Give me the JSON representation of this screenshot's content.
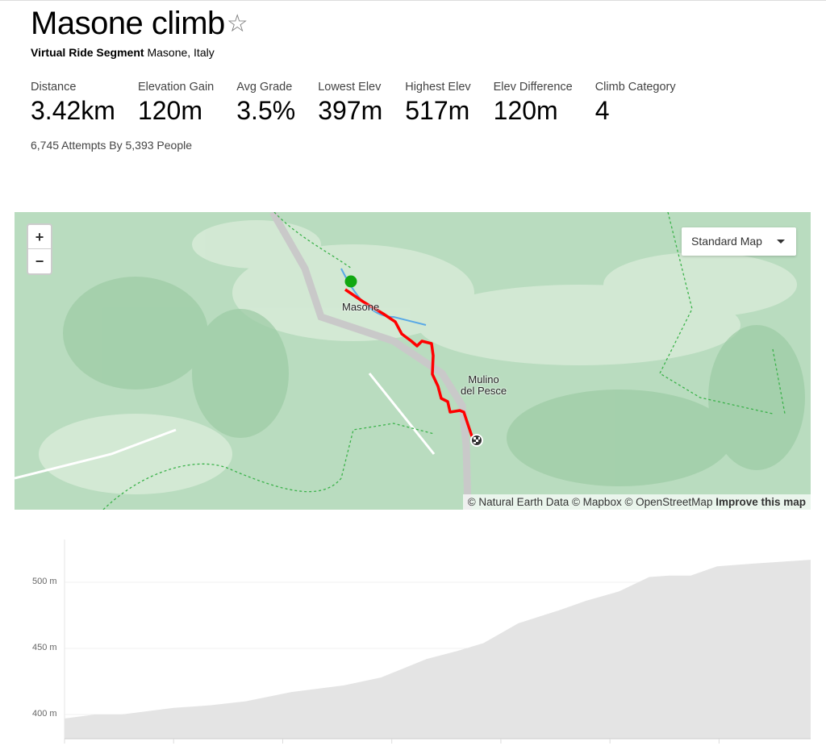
{
  "header": {
    "title": "Masone climb",
    "star_icon": "star-outline-icon",
    "segment_type": "Virtual Ride Segment",
    "location": "Masone, Italy"
  },
  "stats": [
    {
      "label": "Distance",
      "value": "3.42km"
    },
    {
      "label": "Elevation Gain",
      "value": "120m"
    },
    {
      "label": "Avg Grade",
      "value": "3.5%"
    },
    {
      "label": "Lowest Elev",
      "value": "397m"
    },
    {
      "label": "Highest Elev",
      "value": "517m"
    },
    {
      "label": "Elev Difference",
      "value": "120m"
    },
    {
      "label": "Climb Category",
      "value": "4"
    }
  ],
  "attempts": "6,745 Attempts By 5,393 People",
  "map": {
    "zoom_in": "+",
    "zoom_out": "−",
    "style_select": "Standard Map",
    "labels": {
      "town1": "Masone",
      "town2_line1": "Mulino",
      "town2_line2": "del Pesce"
    },
    "attribution": "© Natural Earth Data © Mapbox © OpenStreetMap",
    "improve": "Improve this map",
    "route_color": "#ff0000",
    "start_color": "#11a811"
  },
  "chart_data": {
    "type": "area",
    "xlabel": "",
    "ylabel": "",
    "xlim": [
      0,
      3.42
    ],
    "ylim": [
      382,
      532
    ],
    "y_ticks": [
      "400 m",
      "450 m",
      "500 m"
    ],
    "x": [
      0,
      0.14,
      0.26,
      0.5,
      0.67,
      0.83,
      1.04,
      1.28,
      1.45,
      1.66,
      1.8,
      1.92,
      2.08,
      2.27,
      2.39,
      2.54,
      2.68,
      2.77,
      2.87,
      2.99,
      3.15,
      3.42
    ],
    "values": [
      397,
      400,
      400,
      405,
      407,
      410,
      417,
      422,
      428,
      442,
      448,
      454,
      469,
      479,
      486,
      493,
      504,
      505,
      505,
      512,
      514,
      517
    ],
    "fill": "#e4e4e4",
    "grid": true
  }
}
